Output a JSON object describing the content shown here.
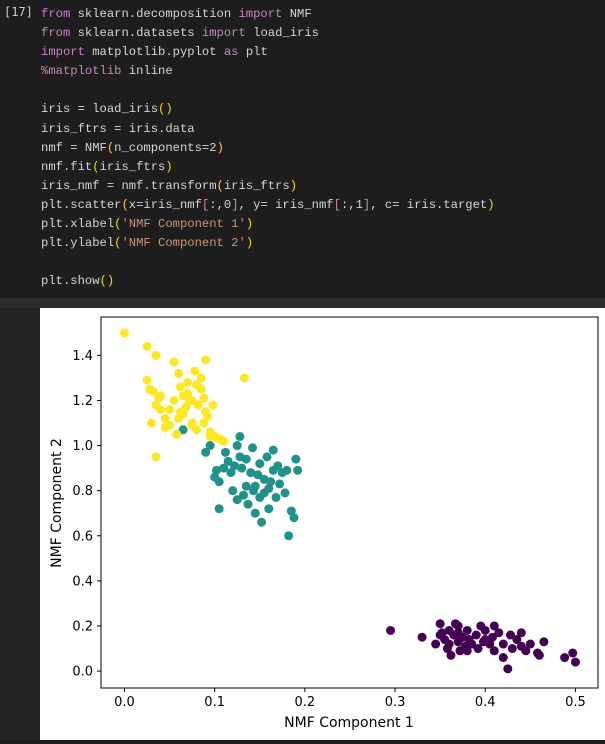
{
  "cell": {
    "prompt": "[17]",
    "code_lines": [
      [
        {
          "t": "from",
          "c": "kw"
        },
        {
          "t": " sklearn.decomposition "
        },
        {
          "t": "import",
          "c": "kw"
        },
        {
          "t": " NMF"
        }
      ],
      [
        {
          "t": "from",
          "c": "kw"
        },
        {
          "t": " sklearn.datasets "
        },
        {
          "t": "import",
          "c": "kw"
        },
        {
          "t": " load_iris"
        }
      ],
      [
        {
          "t": "import",
          "c": "kw"
        },
        {
          "t": " matplotlib.pyplot "
        },
        {
          "t": "as",
          "c": "kw"
        },
        {
          "t": " plt"
        }
      ],
      [
        {
          "t": "%matplotlib",
          "c": "magic"
        },
        {
          "t": " inline"
        }
      ],
      [],
      [
        {
          "t": "iris = load_iris"
        },
        {
          "t": "()",
          "c": "pl"
        }
      ],
      [
        {
          "t": "iris_ftrs = iris.data"
        }
      ],
      [
        {
          "t": "nmf = NMF"
        },
        {
          "t": "(",
          "c": "pl"
        },
        {
          "t": "n_components=2"
        },
        {
          "t": ")",
          "c": "pl"
        }
      ],
      [
        {
          "t": "nmf.fit"
        },
        {
          "t": "(",
          "c": "pl"
        },
        {
          "t": "iris_ftrs"
        },
        {
          "t": ")",
          "c": "pl"
        }
      ],
      [
        {
          "t": "iris_nmf = nmf.transform"
        },
        {
          "t": "(",
          "c": "pl"
        },
        {
          "t": "iris_ftrs"
        },
        {
          "t": ")",
          "c": "pl"
        }
      ],
      [
        {
          "t": "plt.scatter"
        },
        {
          "t": "(",
          "c": "pl"
        },
        {
          "t": "x=iris_nmf"
        },
        {
          "t": "[",
          "c": "kw"
        },
        {
          "t": ":,0"
        },
        {
          "t": "]",
          "c": "kw"
        },
        {
          "t": ", y= iris_nmf"
        },
        {
          "t": "[",
          "c": "kw"
        },
        {
          "t": ":,1"
        },
        {
          "t": "]",
          "c": "kw"
        },
        {
          "t": ", c= iris.target"
        },
        {
          "t": ")",
          "c": "pl"
        }
      ],
      [
        {
          "t": "plt.xlabel"
        },
        {
          "t": "(",
          "c": "pl"
        },
        {
          "t": "'NMF Component 1'",
          "c": "str"
        },
        {
          "t": ")",
          "c": "pl"
        }
      ],
      [
        {
          "t": "plt.ylabel"
        },
        {
          "t": "(",
          "c": "pl"
        },
        {
          "t": "'NMF Component 2'",
          "c": "str"
        },
        {
          "t": ")",
          "c": "pl"
        }
      ],
      [],
      [
        {
          "t": "plt.show"
        },
        {
          "t": "()",
          "c": "pl"
        }
      ]
    ]
  },
  "chart_data": {
    "type": "scatter",
    "xlabel": "NMF Component 1",
    "ylabel": "NMF Component 2",
    "xlim": [
      -0.026,
      0.525
    ],
    "ylim": [
      -0.075,
      1.57
    ],
    "xticks": [
      "0.0",
      "0.1",
      "0.2",
      "0.3",
      "0.4",
      "0.5"
    ],
    "yticks": [
      "0.0",
      "0.2",
      "0.4",
      "0.6",
      "0.8",
      "1.0",
      "1.2",
      "1.4"
    ],
    "grid": false,
    "colors": {
      "0": "#440154",
      "1": "#21918c",
      "2": "#fde725"
    },
    "points": [
      [
        0.295,
        0.18,
        0
      ],
      [
        0.33,
        0.15,
        0
      ],
      [
        0.345,
        0.12,
        0
      ],
      [
        0.35,
        0.21,
        0
      ],
      [
        0.352,
        0.17,
        0
      ],
      [
        0.355,
        0.14,
        0
      ],
      [
        0.358,
        0.1,
        0
      ],
      [
        0.36,
        0.18,
        0
      ],
      [
        0.362,
        0.07,
        0
      ],
      [
        0.365,
        0.16,
        0
      ],
      [
        0.367,
        0.21,
        0
      ],
      [
        0.37,
        0.13,
        0
      ],
      [
        0.372,
        0.09,
        0
      ],
      [
        0.375,
        0.15,
        0
      ],
      [
        0.378,
        0.11,
        0
      ],
      [
        0.38,
        0.18,
        0
      ],
      [
        0.382,
        0.14,
        0
      ],
      [
        0.385,
        0.12,
        0
      ],
      [
        0.39,
        0.16,
        0
      ],
      [
        0.392,
        0.1,
        0
      ],
      [
        0.395,
        0.2,
        0
      ],
      [
        0.398,
        0.13,
        0
      ],
      [
        0.4,
        0.18,
        0
      ],
      [
        0.405,
        0.12,
        0
      ],
      [
        0.408,
        0.15,
        0
      ],
      [
        0.41,
        0.09,
        0
      ],
      [
        0.415,
        0.17,
        0
      ],
      [
        0.42,
        0.12,
        0
      ],
      [
        0.425,
        0.01,
        0
      ],
      [
        0.428,
        0.16,
        0
      ],
      [
        0.43,
        0.1,
        0
      ],
      [
        0.435,
        0.14,
        0
      ],
      [
        0.44,
        0.17,
        0
      ],
      [
        0.445,
        0.09,
        0
      ],
      [
        0.45,
        0.12,
        0
      ],
      [
        0.458,
        0.08,
        0
      ],
      [
        0.46,
        0.07,
        0
      ],
      [
        0.465,
        0.13,
        0
      ],
      [
        0.488,
        0.06,
        0
      ],
      [
        0.497,
        0.08,
        0
      ],
      [
        0.5,
        0.04,
        0
      ],
      [
        0.37,
        0.2,
        0
      ],
      [
        0.36,
        0.12,
        0
      ],
      [
        0.4,
        0.14,
        0
      ],
      [
        0.42,
        0.06,
        0
      ],
      [
        0.35,
        0.16,
        0
      ],
      [
        0.38,
        0.09,
        0
      ],
      [
        0.41,
        0.2,
        0
      ],
      [
        0.44,
        0.11,
        0
      ],
      [
        0.37,
        0.17,
        0
      ],
      [
        0.065,
        1.07,
        1
      ],
      [
        0.09,
        0.97,
        1
      ],
      [
        0.095,
        1.0,
        1
      ],
      [
        0.1,
        0.86,
        1
      ],
      [
        0.102,
        0.89,
        1
      ],
      [
        0.105,
        0.84,
        1
      ],
      [
        0.105,
        0.72,
        1
      ],
      [
        0.11,
        0.9,
        1
      ],
      [
        0.112,
        0.97,
        1
      ],
      [
        0.115,
        0.93,
        1
      ],
      [
        0.118,
        0.88,
        1
      ],
      [
        0.12,
        0.8,
        1
      ],
      [
        0.122,
        0.91,
        1
      ],
      [
        0.125,
        1.0,
        1
      ],
      [
        0.125,
        0.76,
        1
      ],
      [
        0.128,
        0.95,
        1
      ],
      [
        0.13,
        0.9,
        1
      ],
      [
        0.132,
        0.78,
        1
      ],
      [
        0.135,
        0.82,
        1
      ],
      [
        0.135,
        0.94,
        1
      ],
      [
        0.137,
        0.74,
        1
      ],
      [
        0.14,
        0.88,
        1
      ],
      [
        0.142,
        0.99,
        1
      ],
      [
        0.143,
        0.8,
        1
      ],
      [
        0.145,
        0.82,
        1
      ],
      [
        0.145,
        0.7,
        1
      ],
      [
        0.148,
        0.87,
        1
      ],
      [
        0.15,
        0.92,
        1
      ],
      [
        0.15,
        0.77,
        1
      ],
      [
        0.152,
        0.66,
        1
      ],
      [
        0.155,
        0.85,
        1
      ],
      [
        0.155,
        0.79,
        1
      ],
      [
        0.158,
        0.95,
        1
      ],
      [
        0.16,
        0.72,
        1
      ],
      [
        0.162,
        0.84,
        1
      ],
      [
        0.165,
        0.89,
        1
      ],
      [
        0.165,
        0.98,
        1
      ],
      [
        0.168,
        0.77,
        1
      ],
      [
        0.17,
        0.91,
        1
      ],
      [
        0.172,
        0.83,
        1
      ],
      [
        0.175,
        0.88,
        1
      ],
      [
        0.178,
        0.79,
        1
      ],
      [
        0.18,
        0.89,
        1
      ],
      [
        0.182,
        0.6,
        1
      ],
      [
        0.185,
        0.71,
        1
      ],
      [
        0.188,
        0.68,
        1
      ],
      [
        0.19,
        0.94,
        1
      ],
      [
        0.192,
        0.89,
        1
      ],
      [
        0.128,
        1.04,
        1
      ],
      [
        0.16,
        0.81,
        1
      ],
      [
        0.0,
        1.5,
        2
      ],
      [
        0.025,
        1.44,
        2
      ],
      [
        0.035,
        1.4,
        2
      ],
      [
        0.025,
        1.29,
        2
      ],
      [
        0.028,
        1.25,
        2
      ],
      [
        0.032,
        1.24,
        2
      ],
      [
        0.035,
        1.18,
        2
      ],
      [
        0.038,
        1.21,
        2
      ],
      [
        0.04,
        1.22,
        2
      ],
      [
        0.045,
        1.12,
        2
      ],
      [
        0.045,
        1.08,
        2
      ],
      [
        0.05,
        1.09,
        2
      ],
      [
        0.055,
        1.37,
        2
      ],
      [
        0.055,
        1.2,
        2
      ],
      [
        0.058,
        1.05,
        2
      ],
      [
        0.06,
        1.32,
        2
      ],
      [
        0.062,
        1.26,
        2
      ],
      [
        0.062,
        1.15,
        2
      ],
      [
        0.065,
        1.22,
        2
      ],
      [
        0.068,
        1.17,
        2
      ],
      [
        0.07,
        1.28,
        2
      ],
      [
        0.072,
        1.2,
        2
      ],
      [
        0.075,
        1.1,
        2
      ],
      [
        0.075,
        1.09,
        2
      ],
      [
        0.078,
        1.33,
        2
      ],
      [
        0.08,
        1.27,
        2
      ],
      [
        0.082,
        1.18,
        2
      ],
      [
        0.085,
        1.3,
        2
      ],
      [
        0.088,
        1.21,
        2
      ],
      [
        0.09,
        1.38,
        2
      ],
      [
        0.092,
        1.13,
        2
      ],
      [
        0.095,
        1.06,
        2
      ],
      [
        0.098,
        1.18,
        2
      ],
      [
        0.1,
        1.04,
        2
      ],
      [
        0.105,
        1.03,
        2
      ],
      [
        0.11,
        1.02,
        2
      ],
      [
        0.133,
        1.3,
        2
      ],
      [
        0.035,
        0.95,
        2
      ],
      [
        0.03,
        1.1,
        2
      ],
      [
        0.085,
        1.25,
        2
      ],
      [
        0.09,
        1.15,
        2
      ],
      [
        0.07,
        1.23,
        2
      ],
      [
        0.06,
        1.12,
        2
      ],
      [
        0.08,
        1.07,
        2
      ],
      [
        0.05,
        1.16,
        2
      ],
      [
        0.095,
        1.04,
        2
      ],
      [
        0.075,
        1.2,
        2
      ],
      [
        0.065,
        1.14,
        2
      ],
      [
        0.04,
        1.16,
        2
      ],
      [
        0.088,
        1.1,
        2
      ]
    ]
  }
}
